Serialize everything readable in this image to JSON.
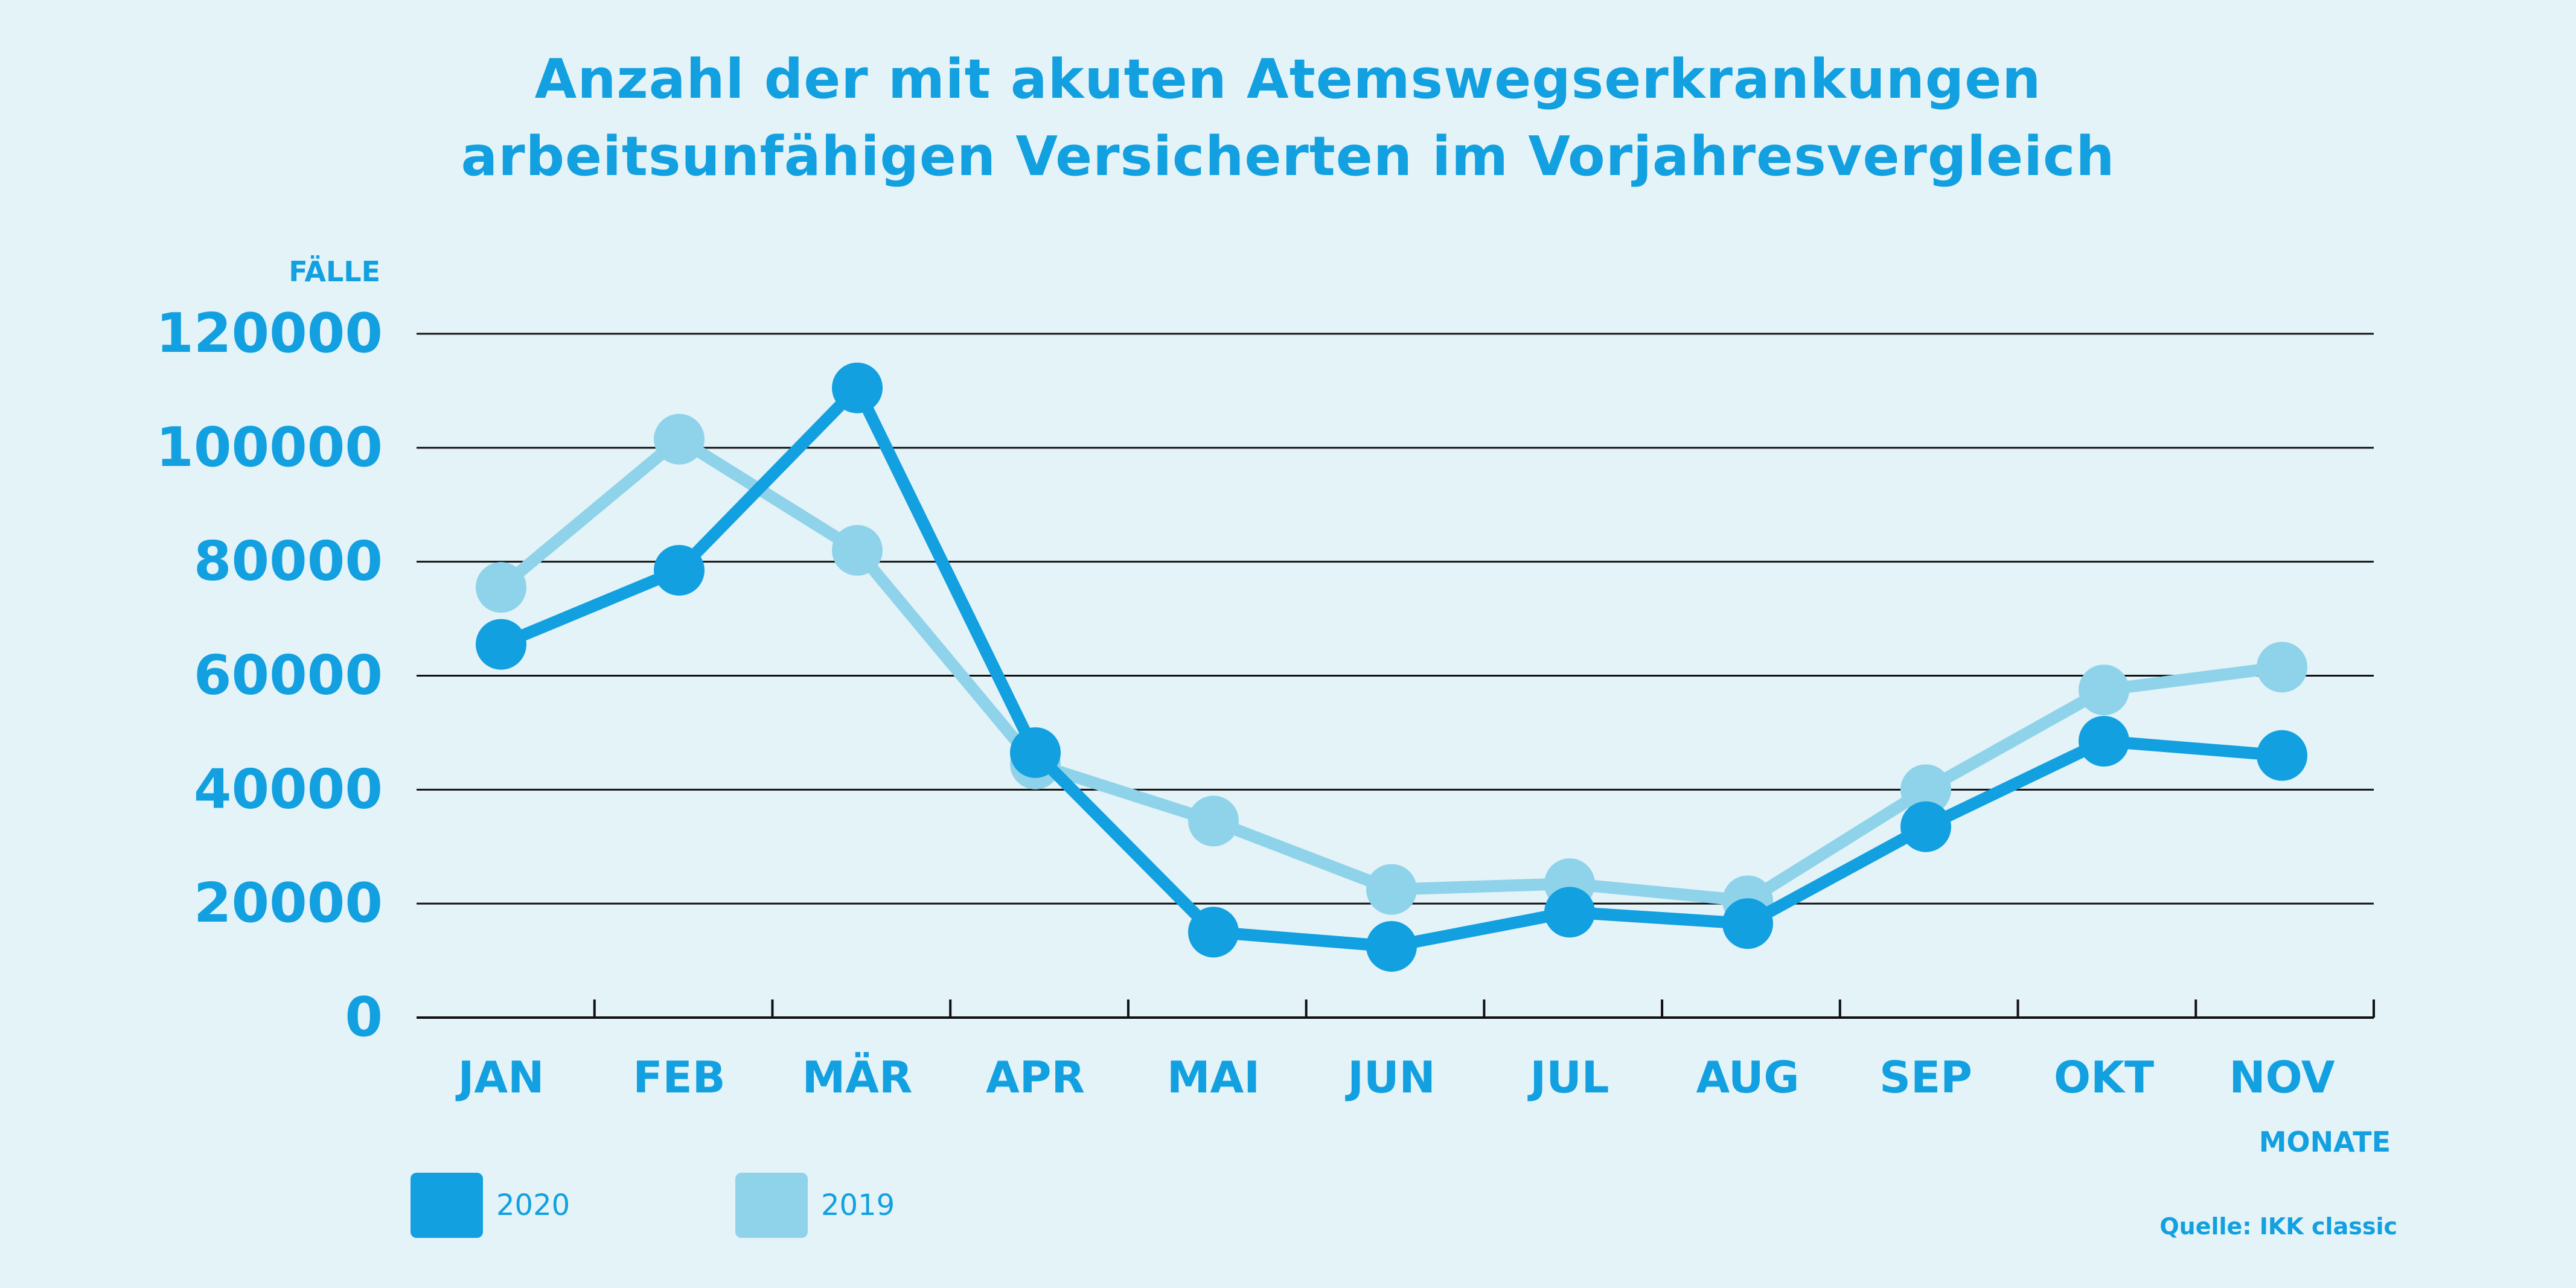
{
  "chart_data": {
    "type": "line",
    "title_line1": "Anzahl der mit akuten Atemswegserkrankungen",
    "title_line2": "arbeitsunfähigen Versicherten im Vorjahresvergleich",
    "ylabel": "FÄLLE",
    "xlabel": "MONATE",
    "categories": [
      "JAN",
      "FEB",
      "MÄR",
      "APR",
      "MAI",
      "JUN",
      "JUL",
      "AUG",
      "SEP",
      "OKT",
      "NOV"
    ],
    "y_ticks": [
      "0",
      "20000",
      "40000",
      "60000",
      "80000",
      "100000",
      "120000"
    ],
    "ylim": [
      0,
      120000
    ],
    "grid": true,
    "legend_position": "bottom-left",
    "series": [
      {
        "name": "2020",
        "color": "#12a0e0",
        "values": [
          65500,
          78500,
          110500,
          46500,
          15000,
          12500,
          18500,
          16500,
          33500,
          48500,
          46000
        ]
      },
      {
        "name": "2019",
        "color": "#8fd3ea",
        "values": [
          75500,
          101500,
          82000,
          44500,
          34500,
          22500,
          23500,
          20500,
          40000,
          57500,
          61500
        ]
      }
    ]
  },
  "source": "Quelle: IKK classic"
}
